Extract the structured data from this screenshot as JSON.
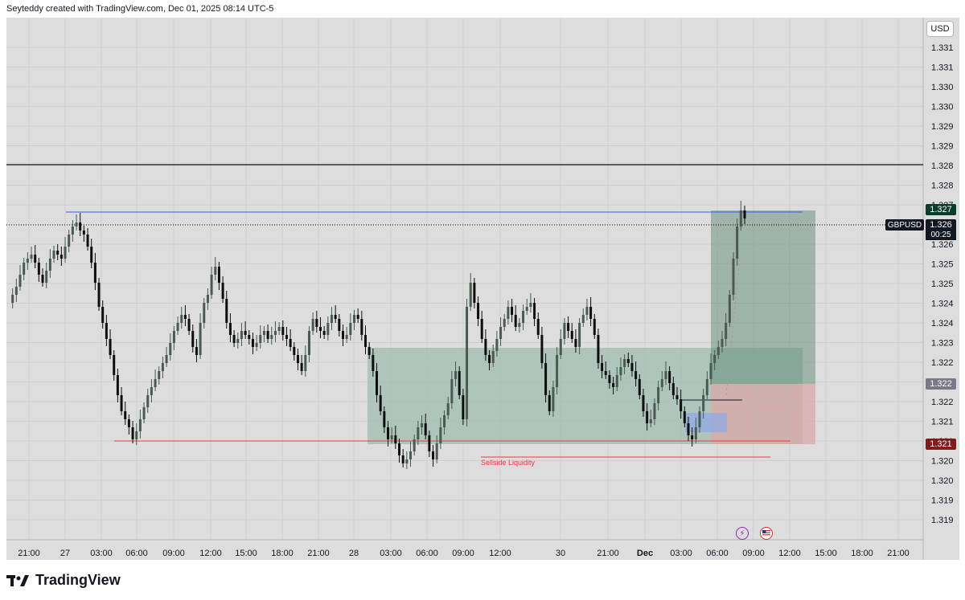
{
  "header": {
    "attribution": "Seyteddy created with TradingView.com, Dec 01, 2025 08:14 UTC-5"
  },
  "toolbar": {
    "currency_label": "USD"
  },
  "symbol": {
    "name": "GBPUSD",
    "countdown": "00:25"
  },
  "price_axis": {
    "labels": [
      "1.331",
      "1.331",
      "1.330",
      "1.330",
      "1.329",
      "1.329",
      "1.328",
      "1.328",
      "1.327",
      "1.326",
      "1.326",
      "1.325",
      "1.325",
      "1.324",
      "1.324",
      "1.323",
      "1.322",
      "1.322",
      "1.322",
      "1.321",
      "1.321",
      "1.320",
      "1.320",
      "1.319",
      "1.319"
    ]
  },
  "price_tags": {
    "target": {
      "label": "1.327",
      "color": "#0b3d2e"
    },
    "current": {
      "label": "1.326",
      "color": "#131722"
    },
    "entry": {
      "label": "1.322",
      "color": "#787b86"
    },
    "stop": {
      "label": "1.321",
      "color": "#7f1d1d"
    }
  },
  "time_axis": {
    "labels": [
      "21:00",
      "27",
      "03:00",
      "06:00",
      "09:00",
      "12:00",
      "15:00",
      "18:00",
      "21:00",
      "28",
      "03:00",
      "06:00",
      "09:00",
      "12:00",
      "30",
      "21:00",
      "Dec",
      "03:00",
      "06:00",
      "09:00",
      "12:00",
      "15:00",
      "18:00",
      "21:00"
    ]
  },
  "annotations": {
    "sellside_liquidity": "Sellside Liquidity"
  },
  "events": [
    {
      "icon": "lightning-icon",
      "color": "#9c27b0"
    },
    {
      "icon": "us-flag-icon",
      "color": "#d32f2f"
    }
  ],
  "colors": {
    "bull_candle": "#4a5a50",
    "bear_candle": "#0e0e0e",
    "zone_fill": "#9fbcb0",
    "profit_fill": "#56836d",
    "loss_fill": "#d9a8a8",
    "blue_line": "#2962ff",
    "red_line": "#f23645"
  },
  "brand": {
    "name": "TradingView"
  }
}
